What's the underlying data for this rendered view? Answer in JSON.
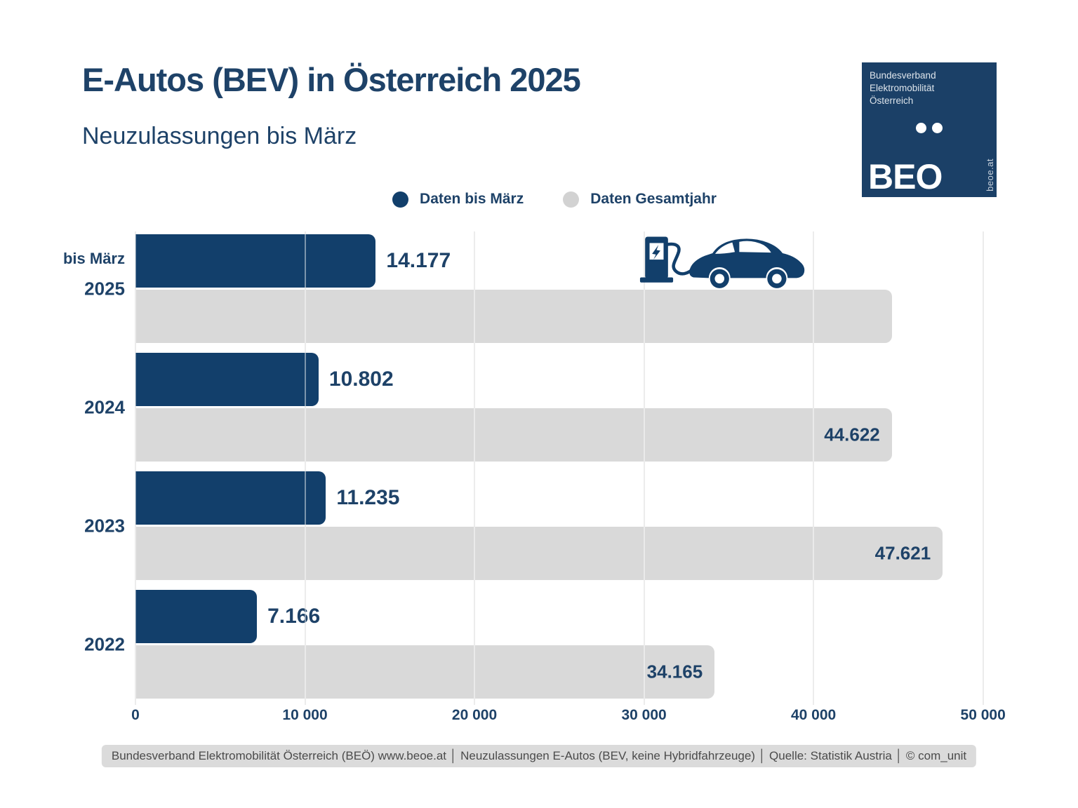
{
  "header": {
    "title": "E-Autos (BEV) in Österreich 2025",
    "subtitle": "Neuzulassungen bis März"
  },
  "logo": {
    "org_lines": [
      "Bundesverband",
      "Elektromobilität",
      "Österreich"
    ],
    "acronym": "BEO",
    "website": "beoe.at",
    "bg_color": "#1B4067"
  },
  "legend": {
    "items": [
      {
        "label": "Daten bis März",
        "color": "#123F6B"
      },
      {
        "label": "Daten Gesamtjahr",
        "color": "#D2D2D2"
      }
    ]
  },
  "chart_data": {
    "type": "bar",
    "orientation": "horizontal",
    "title": "E-Autos (BEV) in Österreich 2025 – Neuzulassungen bis März",
    "categories": [
      "2025",
      "2024",
      "2023",
      "2022"
    ],
    "first_row_note": "bis März",
    "series": [
      {
        "name": "Daten bis März",
        "color": "#123F6B",
        "values": [
          14177,
          10802,
          11235,
          7166
        ],
        "labels": [
          "14.177",
          "10.802",
          "11.235",
          "7.166"
        ],
        "label_position": "outside-right"
      },
      {
        "name": "Daten Gesamtjahr",
        "color": "#D9D9D9",
        "values": [
          44622,
          44622,
          47621,
          34165
        ],
        "labels": [
          "",
          "44.622",
          "47.621",
          "34.165"
        ],
        "label_position": "inside-right",
        "note": "first (2025) full-year bar is drawn but unlabeled; length estimated ≈44 600"
      }
    ],
    "x_ticks": [
      {
        "label": "0",
        "value": 0
      },
      {
        "label": "10 000",
        "value": 10000
      },
      {
        "label": "20 000",
        "value": 20000
      },
      {
        "label": "30 000",
        "value": 30000
      },
      {
        "label": "40 000",
        "value": 40000
      },
      {
        "label": "50 000",
        "value": 50000
      }
    ],
    "xlim": [
      0,
      52250
    ],
    "grid": true,
    "legend_position": "top-center",
    "value_separator": "dot-thousands"
  },
  "footer": {
    "text": "Bundesverband Elektromobilität Österreich (BEÖ) www.beoe.at │ Neuzulassungen E-Autos (BEV, keine Hybridfahrzeuge) │ Quelle: Statistik Austria │ © com_unit"
  },
  "colors": {
    "navy": "#123F6B",
    "text_navy": "#1E4268",
    "gray_bar": "#D9D9D9",
    "gridline": "#DCDCDC",
    "footer_bg": "#DBDBDB",
    "footer_text": "#4B4B4B"
  }
}
